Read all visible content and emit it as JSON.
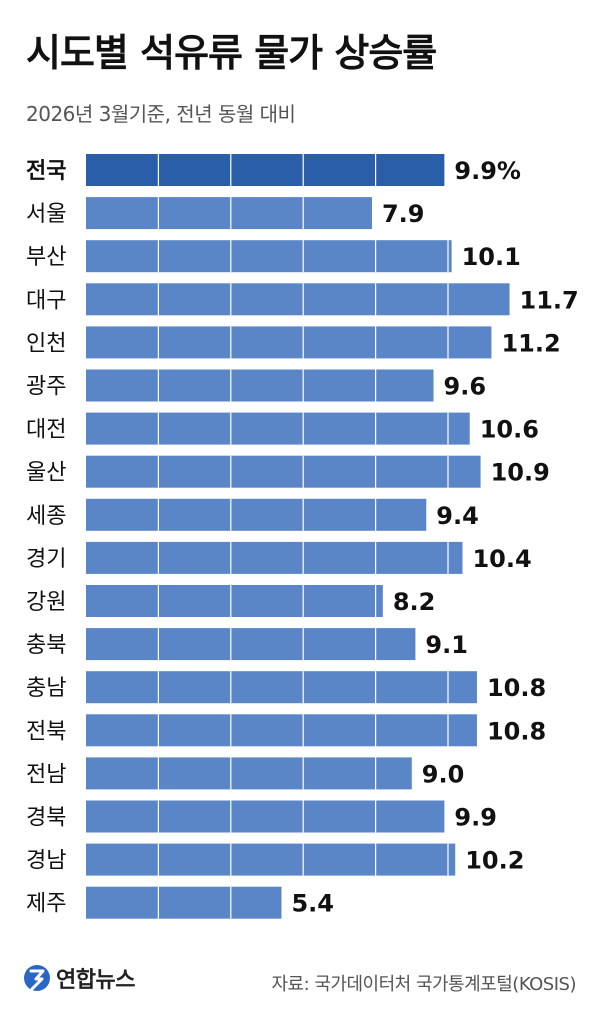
{
  "title": "시도별 석유류 물가 상승률",
  "subtitle": "2026년 3월기준, 전년 동월 대비",
  "source": "자료: 국가데이터처 국가통계포털(KOSIS)",
  "logo_text": "연합뉴스",
  "colors": {
    "bar": "#5a86c8",
    "bar_highlight": "#2a5ea8",
    "grid": "#ffffff",
    "text": "#111111"
  },
  "chart_data": {
    "type": "bar",
    "orientation": "horizontal",
    "title": "시도별 석유류 물가 상승률",
    "subtitle": "2026년 3월기준, 전년 동월 대비",
    "categories": [
      "전국",
      "서울",
      "부산",
      "대구",
      "인천",
      "광주",
      "대전",
      "울산",
      "세종",
      "경기",
      "강원",
      "충북",
      "충남",
      "전북",
      "전남",
      "경북",
      "경남",
      "제주"
    ],
    "values": [
      9.9,
      7.9,
      10.1,
      11.7,
      11.2,
      9.6,
      10.6,
      10.9,
      9.4,
      10.4,
      8.2,
      9.1,
      10.8,
      10.8,
      9.0,
      9.9,
      10.2,
      5.4
    ],
    "value_labels": [
      "9.9%",
      "7.9",
      "10.1",
      "11.7",
      "11.2",
      "9.6",
      "10.6",
      "10.9",
      "9.4",
      "10.4",
      "8.2",
      "9.1",
      "10.8",
      "10.8",
      "9.0",
      "9.9",
      "10.2",
      "5.4"
    ],
    "highlight": "전국",
    "grid": true
  }
}
